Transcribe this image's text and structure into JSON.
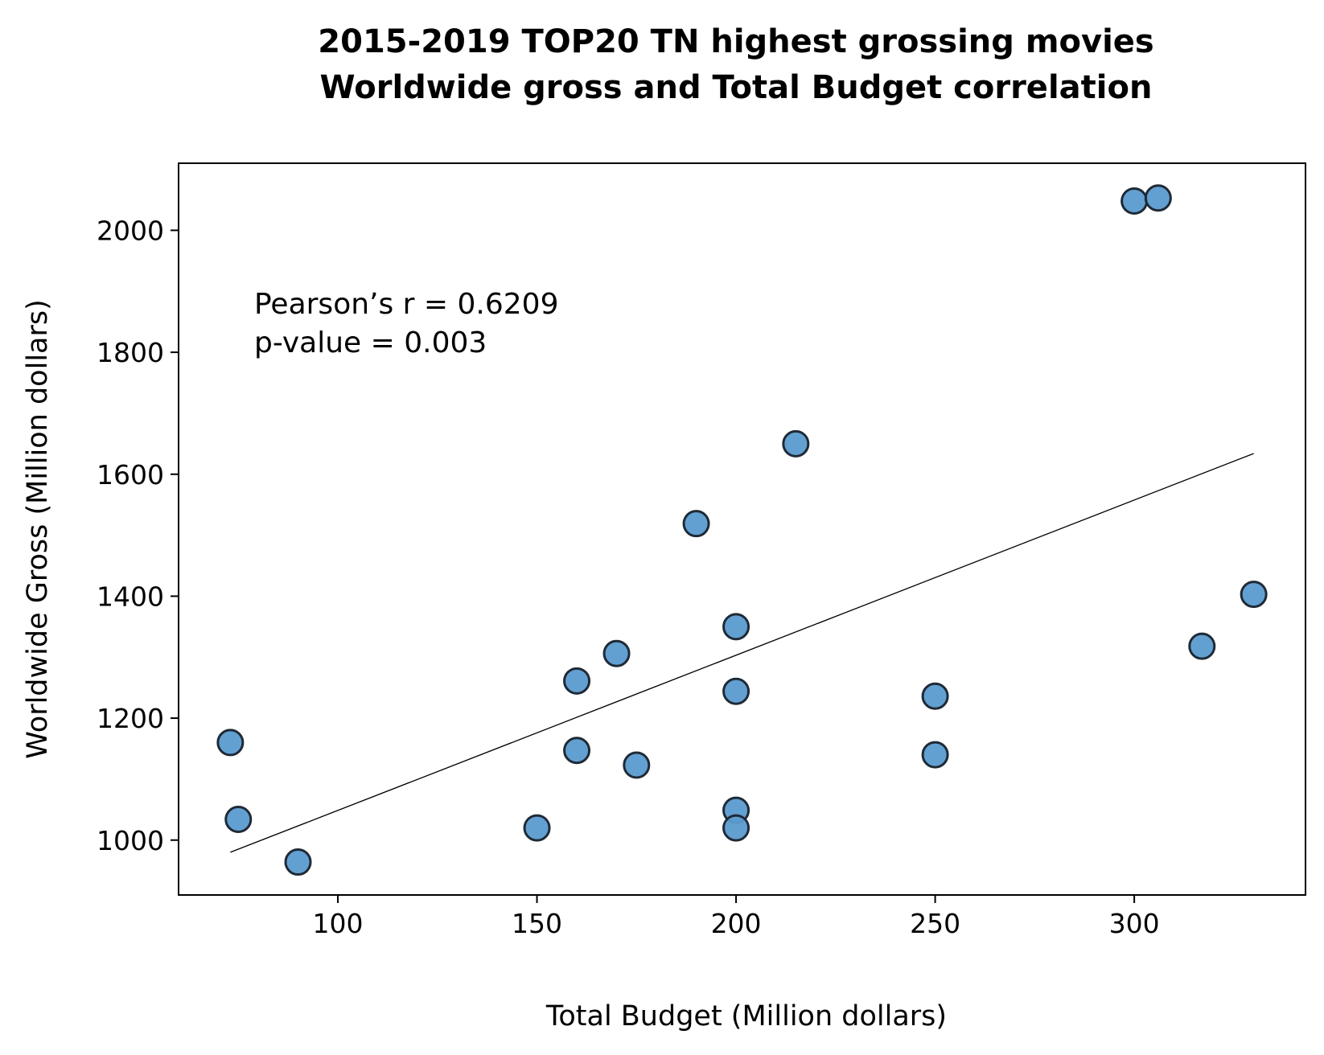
{
  "chart_data": {
    "type": "scatter",
    "title_line1": "2015-2019 TOP20 TN highest grossing movies",
    "title_line2": "Worldwide gross and Total Budget correlation",
    "xlabel": "Total Budget (Million dollars)",
    "ylabel": "Worldwide Gross (Million dollars)",
    "xlim": [
      60,
      343
    ],
    "ylim": [
      910,
      2110
    ],
    "xticks": [
      100,
      150,
      200,
      250,
      300
    ],
    "yticks": [
      1000,
      1200,
      1400,
      1600,
      1800,
      2000
    ],
    "grid": false,
    "annotation_line1": "Pearson’s r = 0.6209",
    "annotation_line2": "p-value = 0.003",
    "point_color": "#5b9bd0",
    "point_edge_color": "#1f2a36",
    "trendline": {
      "x": [
        73,
        330
      ],
      "y": [
        980,
        1634
      ]
    },
    "points": [
      {
        "x": 300,
        "y": 2048
      },
      {
        "x": 306,
        "y": 2053
      },
      {
        "x": 215,
        "y": 1650
      },
      {
        "x": 190,
        "y": 1519
      },
      {
        "x": 330,
        "y": 1403
      },
      {
        "x": 200,
        "y": 1350
      },
      {
        "x": 317,
        "y": 1318
      },
      {
        "x": 170,
        "y": 1306
      },
      {
        "x": 160,
        "y": 1261
      },
      {
        "x": 200,
        "y": 1244
      },
      {
        "x": 250,
        "y": 1236
      },
      {
        "x": 73,
        "y": 1160
      },
      {
        "x": 160,
        "y": 1147
      },
      {
        "x": 250,
        "y": 1140
      },
      {
        "x": 175,
        "y": 1123
      },
      {
        "x": 200,
        "y": 1049
      },
      {
        "x": 75,
        "y": 1034
      },
      {
        "x": 150,
        "y": 1020
      },
      {
        "x": 200,
        "y": 1020
      },
      {
        "x": 90,
        "y": 964
      }
    ]
  }
}
